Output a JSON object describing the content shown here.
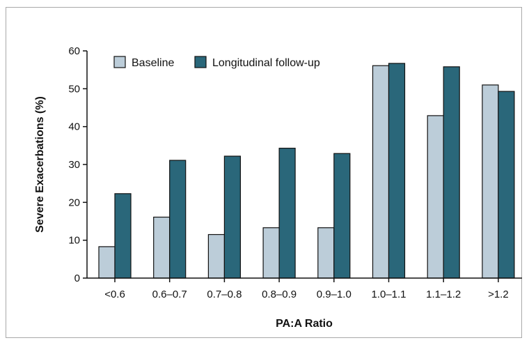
{
  "colors": {
    "baseline": "#bccdd9",
    "followup": "#2a677a",
    "stroke": "#111111"
  },
  "chart_data": {
    "type": "bar",
    "categories": [
      "<0.6",
      "0.6–0.7",
      "0.7–0.8",
      "0.8–0.9",
      "0.9–1.0",
      "1.0–1.1",
      "1.1–1.2",
      ">1.2"
    ],
    "series": [
      {
        "name": "Baseline",
        "values": [
          8.3,
          16.1,
          11.5,
          13.3,
          13.3,
          56.1,
          42.9,
          51.0
        ]
      },
      {
        "name": "Longitudinal follow-up",
        "values": [
          22.3,
          31.1,
          32.2,
          34.3,
          32.9,
          56.7,
          55.8,
          49.3
        ]
      }
    ],
    "xlabel": "PA:A Ratio",
    "ylabel": "Severe Exacerbations (%)",
    "ylim": [
      0,
      60
    ],
    "yticks": [
      0,
      10,
      20,
      30,
      40,
      50,
      60
    ],
    "legend_position": "top-left",
    "grid": false
  }
}
